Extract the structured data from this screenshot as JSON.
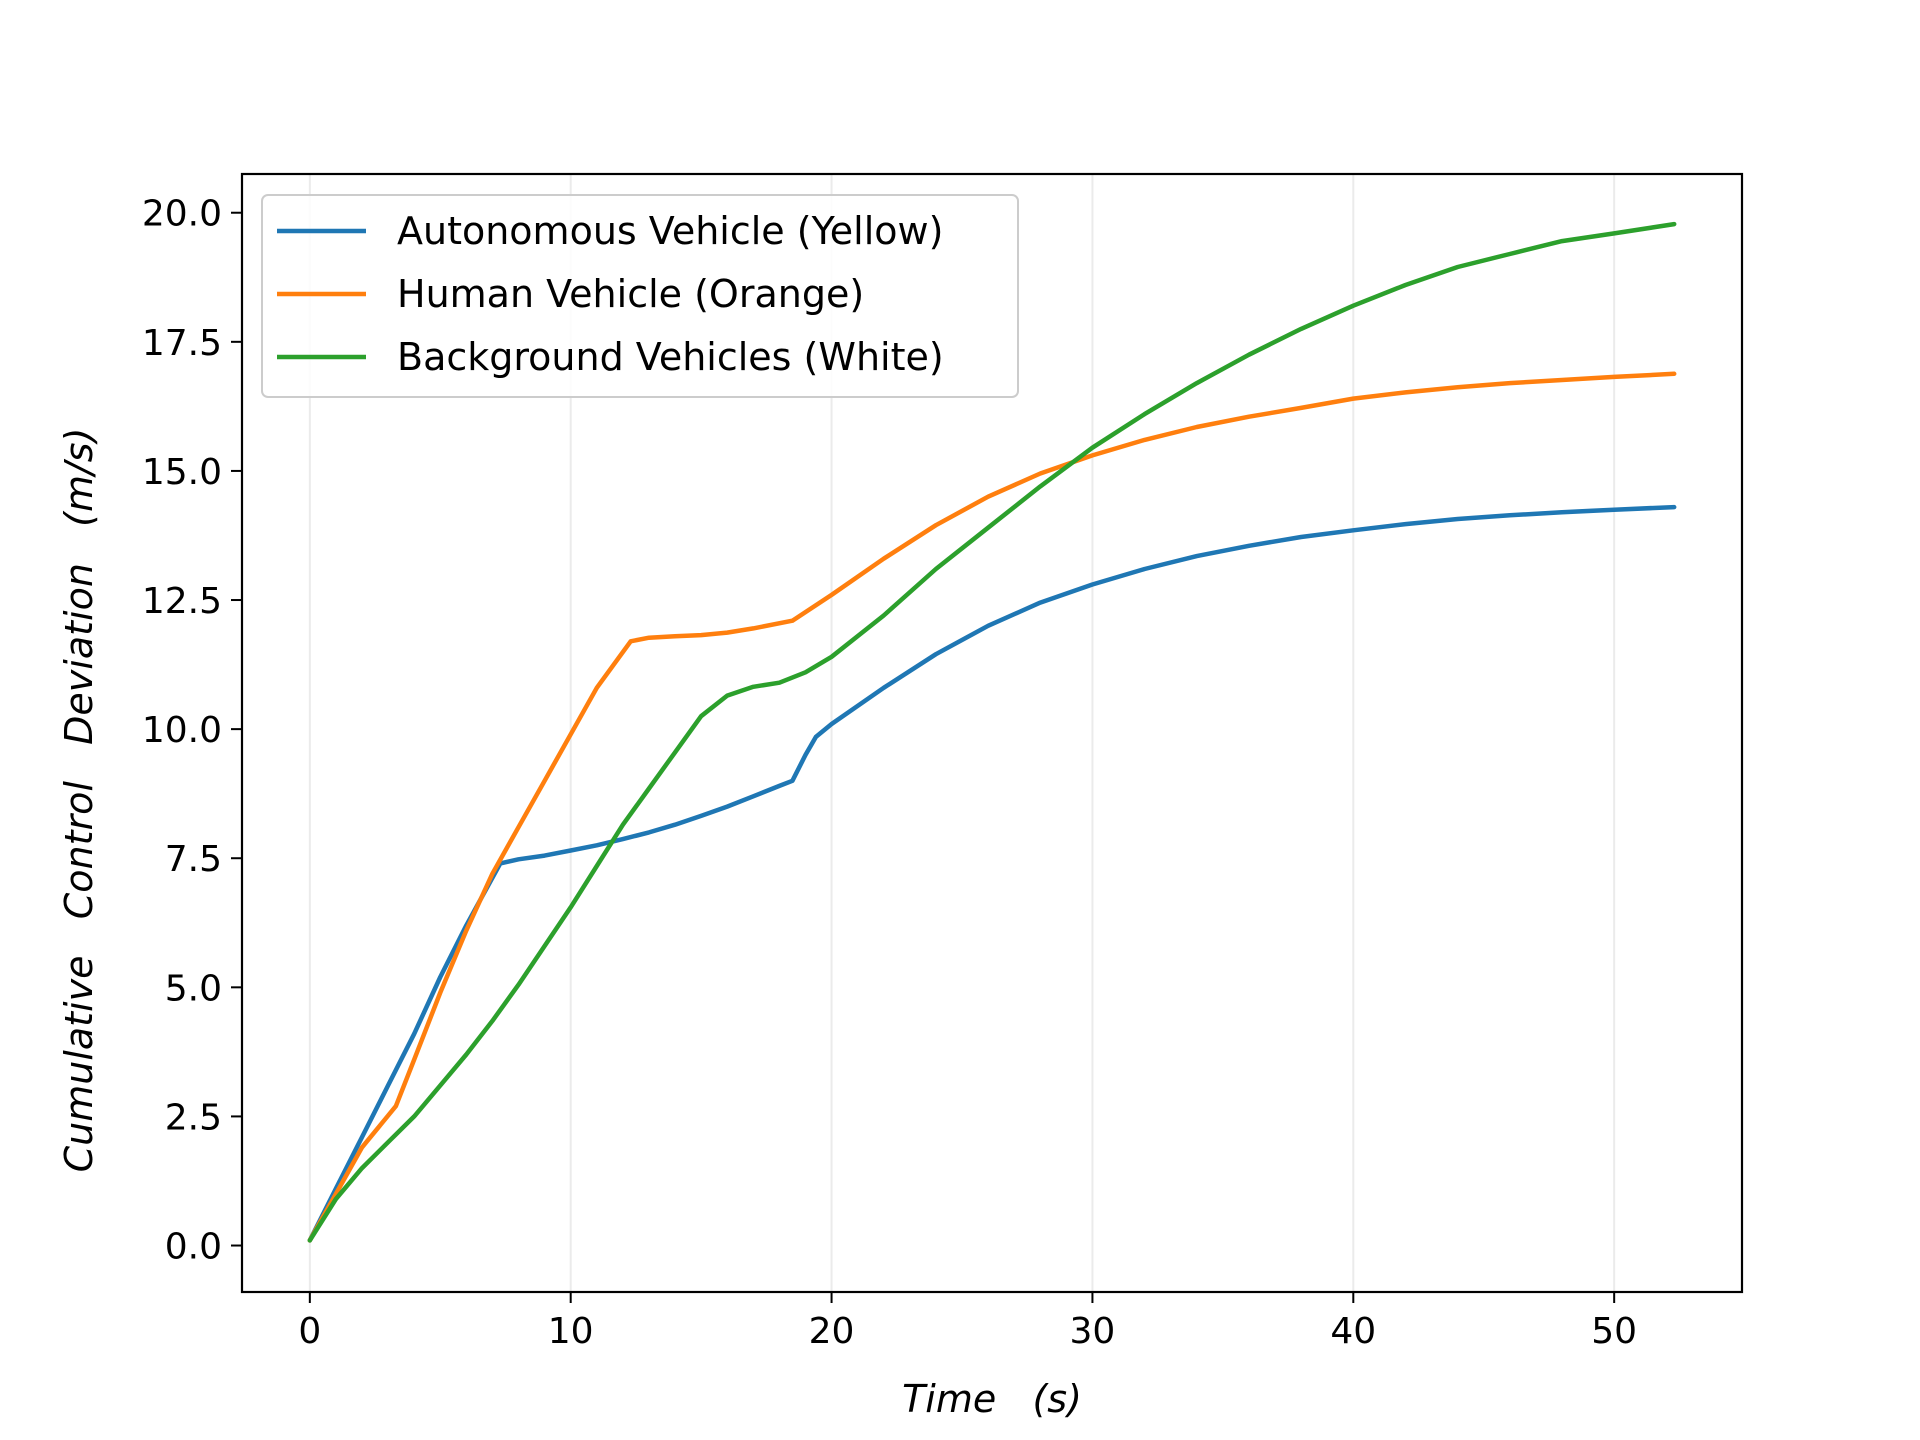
{
  "chart_data": {
    "type": "line",
    "title": "",
    "xlabel": "Time   (s)",
    "ylabel": "Cumulative   Control   Deviation   (m/s)",
    "xlim": [
      -2.6,
      54.9
    ],
    "ylim": [
      -0.9,
      20.75
    ],
    "x_ticks": [
      0,
      10,
      20,
      30,
      40,
      50
    ],
    "y_ticks": [
      0.0,
      2.5,
      5.0,
      7.5,
      10.0,
      12.5,
      15.0,
      17.5,
      20.0
    ],
    "x_tick_labels": [
      "0",
      "10",
      "20",
      "30",
      "40",
      "50"
    ],
    "y_tick_labels": [
      "0.0",
      "2.5",
      "5.0",
      "7.5",
      "10.0",
      "12.5",
      "15.0",
      "17.5",
      "20.0"
    ],
    "grid": "vertical",
    "legend_position": "upper-left",
    "series": [
      {
        "name": "Autonomous Vehicle (Yellow)",
        "color": "#1f77b4",
        "x": [
          0,
          1,
          2,
          3,
          4,
          5,
          6,
          7.3,
          8,
          9,
          10,
          11,
          12,
          13,
          14,
          15,
          16,
          17,
          18,
          18.5,
          19,
          19.4,
          20,
          22,
          24,
          26,
          28,
          30,
          32,
          34,
          36,
          38,
          40,
          42,
          44,
          46,
          48,
          50,
          52.3
        ],
        "y": [
          0.1,
          1.1,
          2.1,
          3.1,
          4.1,
          5.2,
          6.2,
          7.4,
          7.48,
          7.55,
          7.65,
          7.75,
          7.87,
          8.0,
          8.15,
          8.32,
          8.5,
          8.7,
          8.9,
          9.0,
          9.5,
          9.85,
          10.1,
          10.8,
          11.45,
          12.0,
          12.45,
          12.8,
          13.1,
          13.35,
          13.55,
          13.72,
          13.85,
          13.97,
          14.07,
          14.14,
          14.2,
          14.25,
          14.3
        ]
      },
      {
        "name": "Human Vehicle (Orange)",
        "color": "#ff7f0e",
        "x": [
          0,
          1,
          2,
          3.3,
          4,
          5,
          6,
          7,
          8,
          9,
          10,
          11,
          12.3,
          13,
          14,
          15,
          16,
          17,
          18.5,
          20,
          22,
          24,
          26,
          28,
          30,
          32,
          34,
          36,
          38,
          40,
          42,
          44,
          46,
          48,
          50,
          52.3
        ],
        "y": [
          0.1,
          1.0,
          1.9,
          2.7,
          3.6,
          4.9,
          6.1,
          7.2,
          8.1,
          9.0,
          9.9,
          10.8,
          11.7,
          11.77,
          11.8,
          11.82,
          11.87,
          11.95,
          12.1,
          12.6,
          13.3,
          13.95,
          14.5,
          14.95,
          15.3,
          15.6,
          15.85,
          16.05,
          16.22,
          16.4,
          16.52,
          16.62,
          16.7,
          16.76,
          16.82,
          16.88
        ]
      },
      {
        "name": "Background Vehicles (White)",
        "color": "#2ca02c",
        "x": [
          0,
          1,
          2,
          3,
          4,
          5,
          6,
          7,
          8,
          9,
          10,
          11,
          12,
          13,
          14,
          15,
          16,
          17,
          18,
          19,
          20,
          22,
          24,
          26,
          28,
          30,
          32,
          34,
          36,
          38,
          40,
          42,
          44,
          46,
          48,
          50,
          52.3
        ],
        "y": [
          0.1,
          0.9,
          1.5,
          2.0,
          2.5,
          3.1,
          3.7,
          4.35,
          5.05,
          5.8,
          6.55,
          7.35,
          8.15,
          8.85,
          9.55,
          10.25,
          10.65,
          10.82,
          10.9,
          11.1,
          11.4,
          12.2,
          13.1,
          13.9,
          14.7,
          15.45,
          16.1,
          16.7,
          17.25,
          17.75,
          18.2,
          18.6,
          18.95,
          19.2,
          19.45,
          19.6,
          19.78
        ]
      }
    ]
  }
}
